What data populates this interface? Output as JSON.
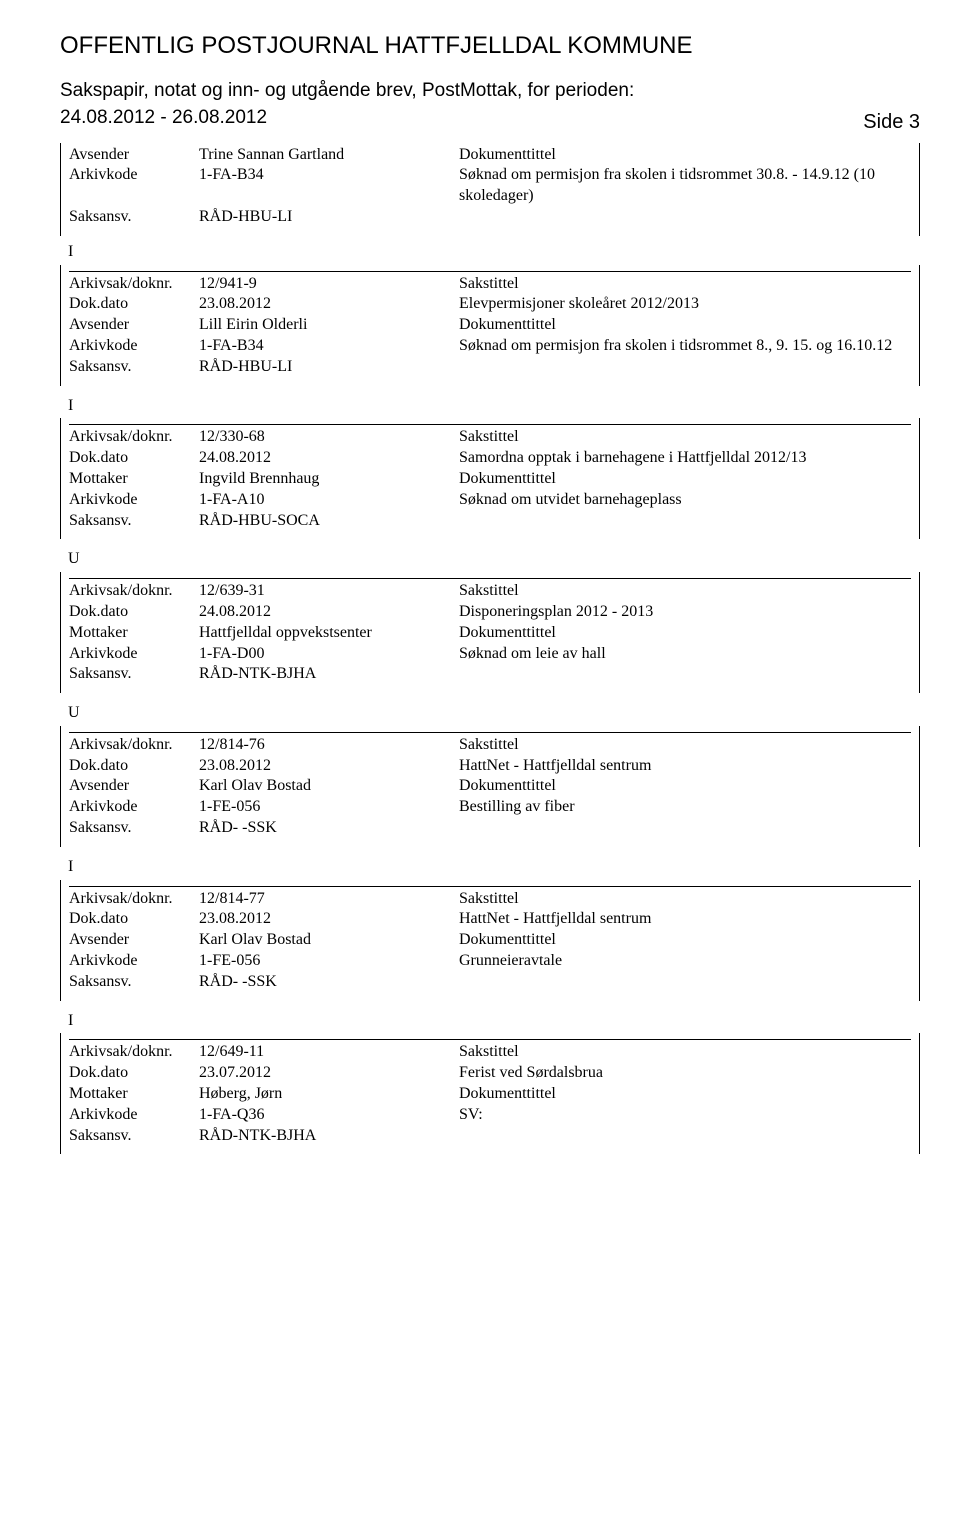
{
  "header": {
    "title": "OFFENTLIG POSTJOURNAL HATTFJELLDAL KOMMUNE",
    "subtitle": "Sakspapir, notat og inn- og utgående brev, PostMottak, for perioden:",
    "date_range": "24.08.2012 - 26.08.2012",
    "side": "Side 3"
  },
  "labels": {
    "avsender": "Avsender",
    "mottaker": "Mottaker",
    "arkivkode": "Arkivkode",
    "saksansv": "Saksansv.",
    "arkivsak": "Arkivsak/doknr.",
    "dokdato": "Dok.dato",
    "sakstittel": "Sakstittel",
    "dokumenttittel": "Dokumenttittel"
  },
  "first": {
    "avsender": "Trine Sannan Gartland",
    "arkivkode": "1-FA-B34",
    "saksansv": "RÅD-HBU-LI",
    "dok_desc": "Søknad om permisjon fra skolen i tidsrommet 30.8. - 14.9.12 (10 skoledager)"
  },
  "entries": [
    {
      "type": "I",
      "arkivsak": "12/941-9",
      "dokdato": "23.08.2012",
      "party_label": "Avsender",
      "party": "Lill Eirin Olderli",
      "arkivkode": "1-FA-B34",
      "saksansv": "RÅD-HBU-LI",
      "sakstittel": "Elevpermisjoner skoleåret 2012/2013",
      "doktittel": "Søknad om permisjon fra skolen i tidsrommet 8., 9. 15. og 16.10.12"
    },
    {
      "type": "I",
      "arkivsak": "12/330-68",
      "dokdato": "24.08.2012",
      "party_label": "Mottaker",
      "party": "Ingvild Brennhaug",
      "arkivkode": "1-FA-A10",
      "saksansv": "RÅD-HBU-SOCA",
      "sakstittel": "Samordna opptak i barnehagene i Hattfjelldal 2012/13",
      "doktittel": "Søknad om utvidet barnehageplass"
    },
    {
      "type": "U",
      "arkivsak": "12/639-31",
      "dokdato": "24.08.2012",
      "party_label": "Mottaker",
      "party": "Hattfjelldal oppvekstsenter",
      "arkivkode": "1-FA-D00",
      "saksansv": "RÅD-NTK-BJHA",
      "sakstittel": "Disponeringsplan 2012 - 2013",
      "doktittel": "Søknad om leie av hall"
    },
    {
      "type": "U",
      "arkivsak": "12/814-76",
      "dokdato": "23.08.2012",
      "party_label": "Avsender",
      "party": "Karl Olav Bostad",
      "arkivkode": "1-FE-056",
      "saksansv": "RÅD- -SSK",
      "sakstittel": "HattNet - Hattfjelldal sentrum",
      "doktittel": "Bestilling av fiber"
    },
    {
      "type": "I",
      "arkivsak": "12/814-77",
      "dokdato": "23.08.2012",
      "party_label": "Avsender",
      "party": "Karl Olav Bostad",
      "arkivkode": "1-FE-056",
      "saksansv": "RÅD- -SSK",
      "sakstittel": "HattNet - Hattfjelldal sentrum",
      "doktittel": "Grunneieravtale"
    },
    {
      "type": "I",
      "arkivsak": "12/649-11",
      "dokdato": "23.07.2012",
      "party_label": "Mottaker",
      "party": "Høberg, Jørn",
      "arkivkode": "1-FA-Q36",
      "saksansv": "RÅD-NTK-BJHA",
      "sakstittel": "Ferist ved Sørdalsbrua",
      "doktittel": "SV:"
    }
  ]
}
